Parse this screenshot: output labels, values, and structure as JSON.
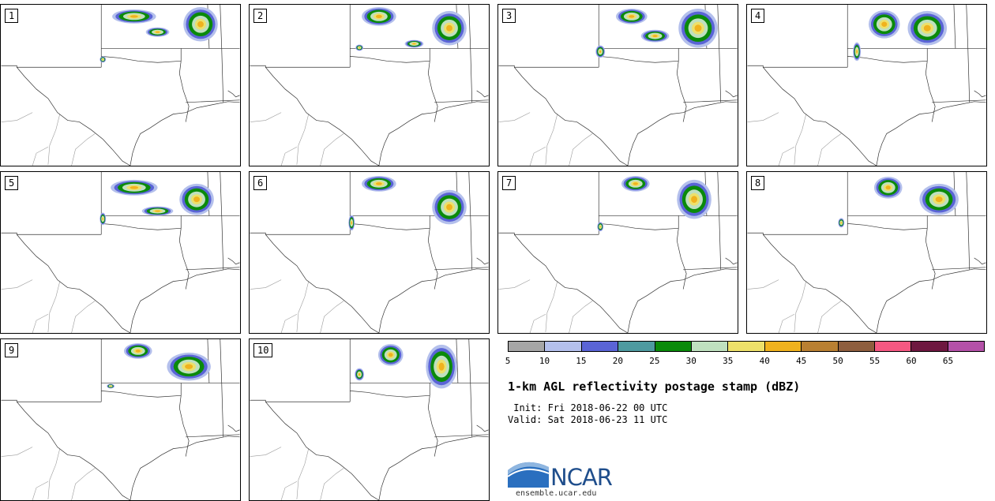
{
  "panels": [
    {
      "label": "1"
    },
    {
      "label": "2"
    },
    {
      "label": "3"
    },
    {
      "label": "4"
    },
    {
      "label": "5"
    },
    {
      "label": "6"
    },
    {
      "label": "7"
    },
    {
      "label": "8"
    },
    {
      "label": "9"
    },
    {
      "label": "10"
    }
  ],
  "colorbar": {
    "colors": [
      "#a6a6a6",
      "#b4c0ec",
      "#5a64d6",
      "#4e9aa0",
      "#0a8a0a",
      "#bfe0bf",
      "#ede06a",
      "#f0b21e",
      "#b98032",
      "#8e5e3e",
      "#f55882",
      "#6e1840",
      "#b451a8"
    ],
    "ticks": [
      "5",
      "10",
      "15",
      "20",
      "25",
      "30",
      "35",
      "40",
      "45",
      "50",
      "55",
      "60",
      "65"
    ]
  },
  "title": "1-km AGL reflectivity postage stamp (dBZ)",
  "init": " Init: Fri 2018-06-22 00 UTC",
  "valid": "Valid: Sat 2018-06-23 11 UTC",
  "logo_text": "NCAR",
  "url": "ensemble.ucar.edu"
}
